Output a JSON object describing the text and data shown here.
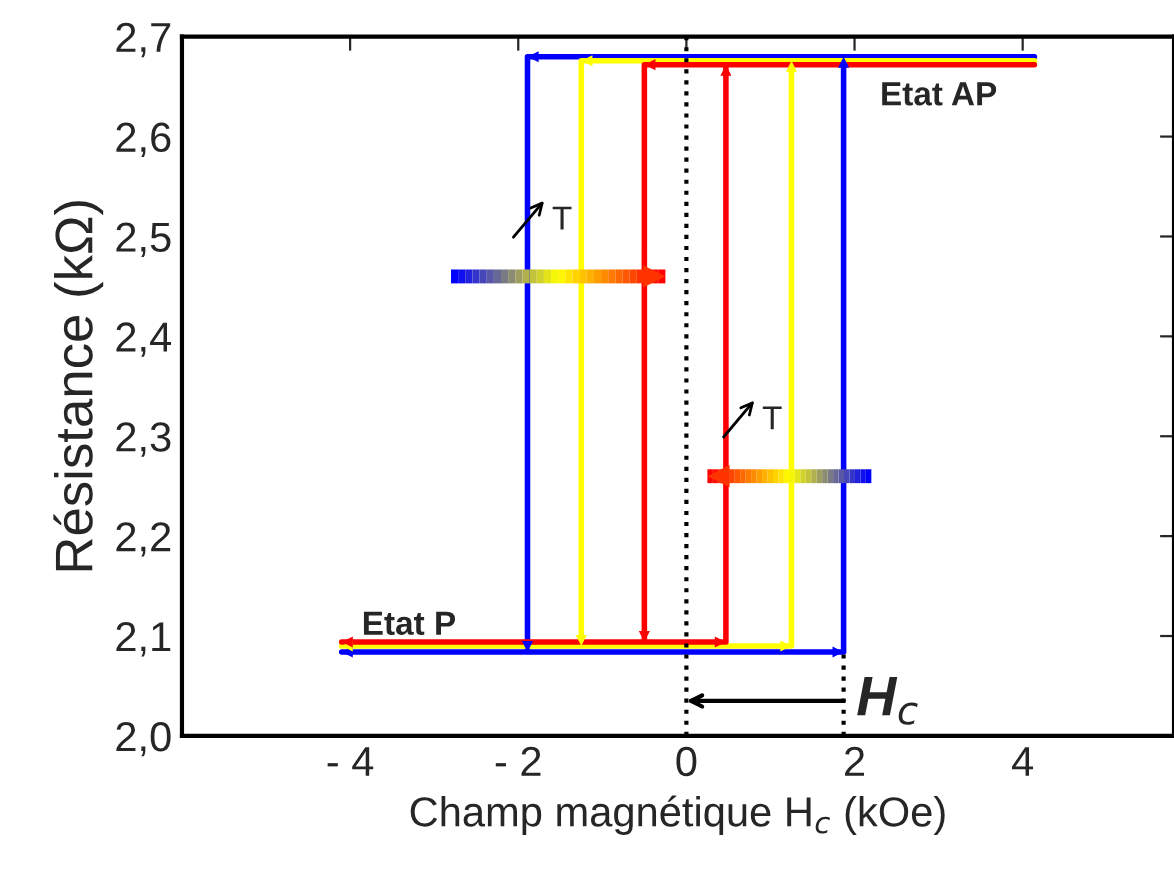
{
  "chart_data": {
    "type": "line",
    "xlabel": "Champ magnétique H$_{c}$ (kOe)",
    "ylabel": "Résistance (kΩ)",
    "series": [
      {
        "color": "#0000ff",
        "x": [
          4.14,
          -1.89,
          -1.89,
          -4.1,
          1.87,
          1.87
        ],
        "values": [
          2.68,
          2.68,
          2.084,
          2.084,
          2.084,
          2.68
        ]
      },
      {
        "color": "#ffff00",
        "x": [
          4.14,
          -1.25,
          -1.25,
          -4.1,
          1.25,
          1.25
        ],
        "values": [
          2.676,
          2.676,
          2.09,
          2.09,
          2.09,
          2.676
        ]
      },
      {
        "color": "#ff0000",
        "x": [
          4.14,
          -0.5,
          -0.5,
          -4.1,
          0.47,
          0.47
        ],
        "values": [
          2.672,
          2.672,
          2.094,
          2.094,
          2.094,
          2.672
        ]
      }
    ],
    "xlim": [
      -6,
      5.8
    ],
    "ylim": [
      2.0,
      2.7
    ],
    "xticks": [
      {
        "value": -4,
        "label": "- 4"
      },
      {
        "value": -2,
        "label": "- 2"
      },
      0,
      2,
      4
    ],
    "yticks": [
      {
        "value": 2.0,
        "label": "2,0"
      },
      {
        "value": 2.1,
        "label": "2,1"
      },
      {
        "value": 2.2,
        "label": "2,2"
      },
      {
        "value": 2.3,
        "label": "2,3"
      },
      {
        "value": 2.4,
        "label": "2,4"
      },
      {
        "value": 2.5,
        "label": "2,5"
      },
      {
        "value": 2.6,
        "label": "2,6"
      },
      {
        "value": 2.7,
        "label": "2,7"
      }
    ],
    "ref_lines": [
      {
        "axis": "x",
        "value": 0,
        "color": "#000000",
        "line_style": "dotted"
      }
    ],
    "annotations": [
      "Etat AP",
      "Etat P",
      "T",
      "T",
      {
        "text": "H$_{c}$",
        "x": 0,
        "y": 2.035
      }
    ],
    "grid": false,
    "marker": "none",
    "line_style": "solid"
  }
}
